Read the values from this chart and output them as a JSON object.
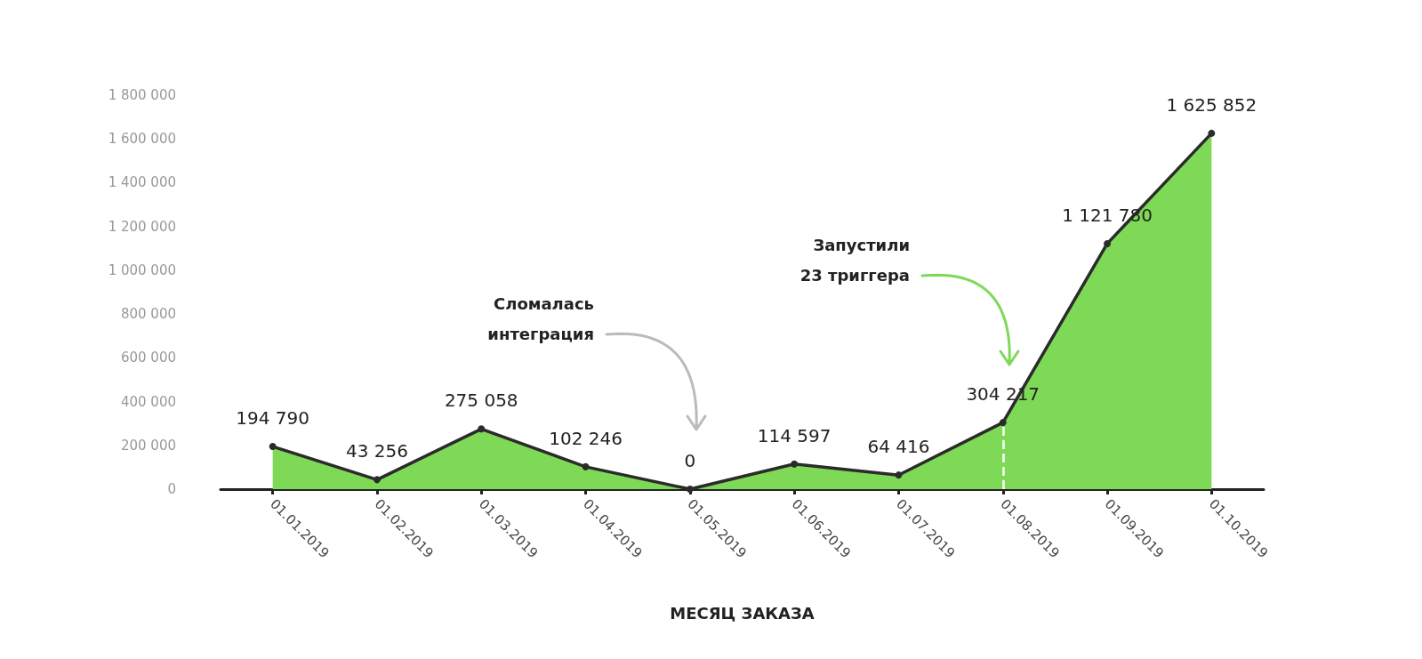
{
  "chart_data": {
    "type": "area",
    "xlabel": "МЕСЯЦ ЗАКАЗА",
    "categories": [
      "01.01.2019",
      "01.02.2019",
      "01.03.2019",
      "01.04.2019",
      "01.05.2019",
      "01.06.2019",
      "01.07.2019",
      "01.08.2019",
      "01.09.2019",
      "01.10.2019"
    ],
    "series": [
      {
        "color": "#7ed957",
        "values": [
          194790,
          43256,
          275058,
          102246,
          0,
          114597,
          64416,
          304217,
          1121780,
          1625852
        ]
      }
    ],
    "ylim": [
      0,
      1800000
    ],
    "yticks": [
      0,
      {
        "value": 200000,
        "label": "200 000"
      },
      {
        "value": 400000,
        "label": "400 000"
      },
      {
        "value": 600000,
        "label": "600 000"
      },
      {
        "value": 800000,
        "label": "800 000"
      },
      {
        "value": 1000000,
        "label": "1 000 000"
      },
      {
        "value": 1200000,
        "label": "1 200 000"
      },
      {
        "value": 1400000,
        "label": "1 400 000"
      },
      {
        "value": 1600000,
        "label": "1 600 000"
      },
      {
        "value": 1800000,
        "label": "1 800 000"
      }
    ],
    "data_labels": true,
    "grid": false,
    "marker": "circle",
    "line_style": "solid",
    "ref_lines": [
      {
        "axis": "x",
        "value": "01.08.2019",
        "color": "#ffffff",
        "line_style": "dashed"
      }
    ],
    "annotations": [
      "Сломалась интеграция",
      "Запустили 23 триггера"
    ]
  }
}
